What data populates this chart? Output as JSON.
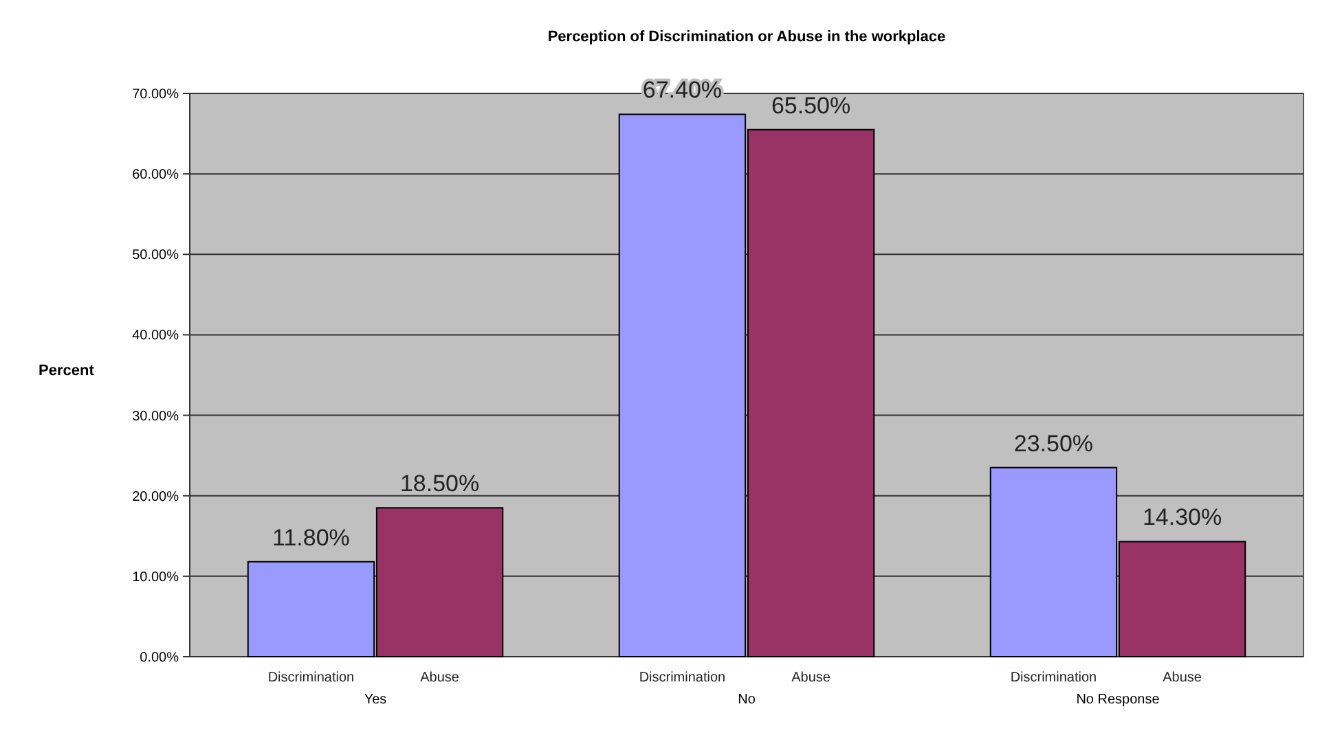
{
  "chart_data": {
    "type": "bar",
    "title": "Perception of Discrimination or Abuse in the workplace",
    "ylabel": "Percent",
    "categories": [
      "Yes",
      "No",
      "No Response"
    ],
    "series": [
      {
        "name": "Discrimination",
        "color": "#9999ff",
        "values": [
          11.8,
          67.4,
          23.5
        ],
        "value_labels": [
          "11.80%",
          "67.40%",
          "23.50%"
        ]
      },
      {
        "name": "Abuse",
        "color": "#993366",
        "values": [
          18.5,
          65.5,
          14.3
        ],
        "value_labels": [
          "18.50%",
          "65.50%",
          "14.30%"
        ]
      }
    ],
    "ylim": [
      0,
      70
    ],
    "yticks": [
      {
        "value": 0,
        "label": "0.00%"
      },
      {
        "value": 10,
        "label": "10.00%"
      },
      {
        "value": 20,
        "label": "20.00%"
      },
      {
        "value": 30,
        "label": "30.00%"
      },
      {
        "value": 40,
        "label": "40.00%"
      },
      {
        "value": 50,
        "label": "50.00%"
      },
      {
        "value": 60,
        "label": "60.00%"
      },
      {
        "value": 70,
        "label": "70.00%"
      }
    ],
    "grid": "y"
  }
}
